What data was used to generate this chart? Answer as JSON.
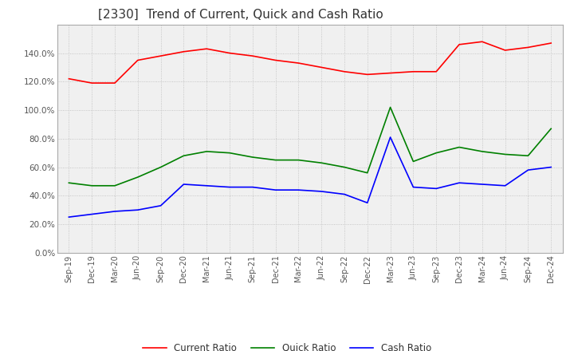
{
  "title": "[2330]  Trend of Current, Quick and Cash Ratio",
  "x_labels": [
    "Sep-19",
    "Dec-19",
    "Mar-20",
    "Jun-20",
    "Sep-20",
    "Dec-20",
    "Mar-21",
    "Jun-21",
    "Sep-21",
    "Dec-21",
    "Mar-22",
    "Jun-22",
    "Sep-22",
    "Dec-22",
    "Mar-23",
    "Jun-23",
    "Sep-23",
    "Dec-23",
    "Mar-24",
    "Jun-24",
    "Sep-24",
    "Dec-24"
  ],
  "current_ratio": [
    1.22,
    1.19,
    1.19,
    1.35,
    1.38,
    1.41,
    1.43,
    1.4,
    1.38,
    1.35,
    1.33,
    1.3,
    1.27,
    1.25,
    1.26,
    1.27,
    1.27,
    1.46,
    1.48,
    1.42,
    1.44,
    1.47
  ],
  "quick_ratio": [
    0.49,
    0.47,
    0.47,
    0.53,
    0.6,
    0.68,
    0.71,
    0.7,
    0.67,
    0.65,
    0.65,
    0.63,
    0.6,
    0.56,
    1.02,
    0.64,
    0.7,
    0.74,
    0.71,
    0.69,
    0.68,
    0.87
  ],
  "cash_ratio": [
    0.25,
    0.27,
    0.29,
    0.3,
    0.33,
    0.48,
    0.47,
    0.46,
    0.46,
    0.44,
    0.44,
    0.43,
    0.41,
    0.35,
    0.81,
    0.46,
    0.45,
    0.49,
    0.48,
    0.47,
    0.58,
    0.6
  ],
  "current_color": "#ff0000",
  "quick_color": "#008000",
  "cash_color": "#0000ff",
  "ylim": [
    0.0,
    1.6
  ],
  "yticks": [
    0.0,
    0.2,
    0.4,
    0.6,
    0.8,
    1.0,
    1.2,
    1.4
  ],
  "background_color": "#ffffff",
  "plot_bg_color": "#f0f0f0",
  "title_fontsize": 11,
  "legend_labels": [
    "Current Ratio",
    "Quick Ratio",
    "Cash Ratio"
  ]
}
